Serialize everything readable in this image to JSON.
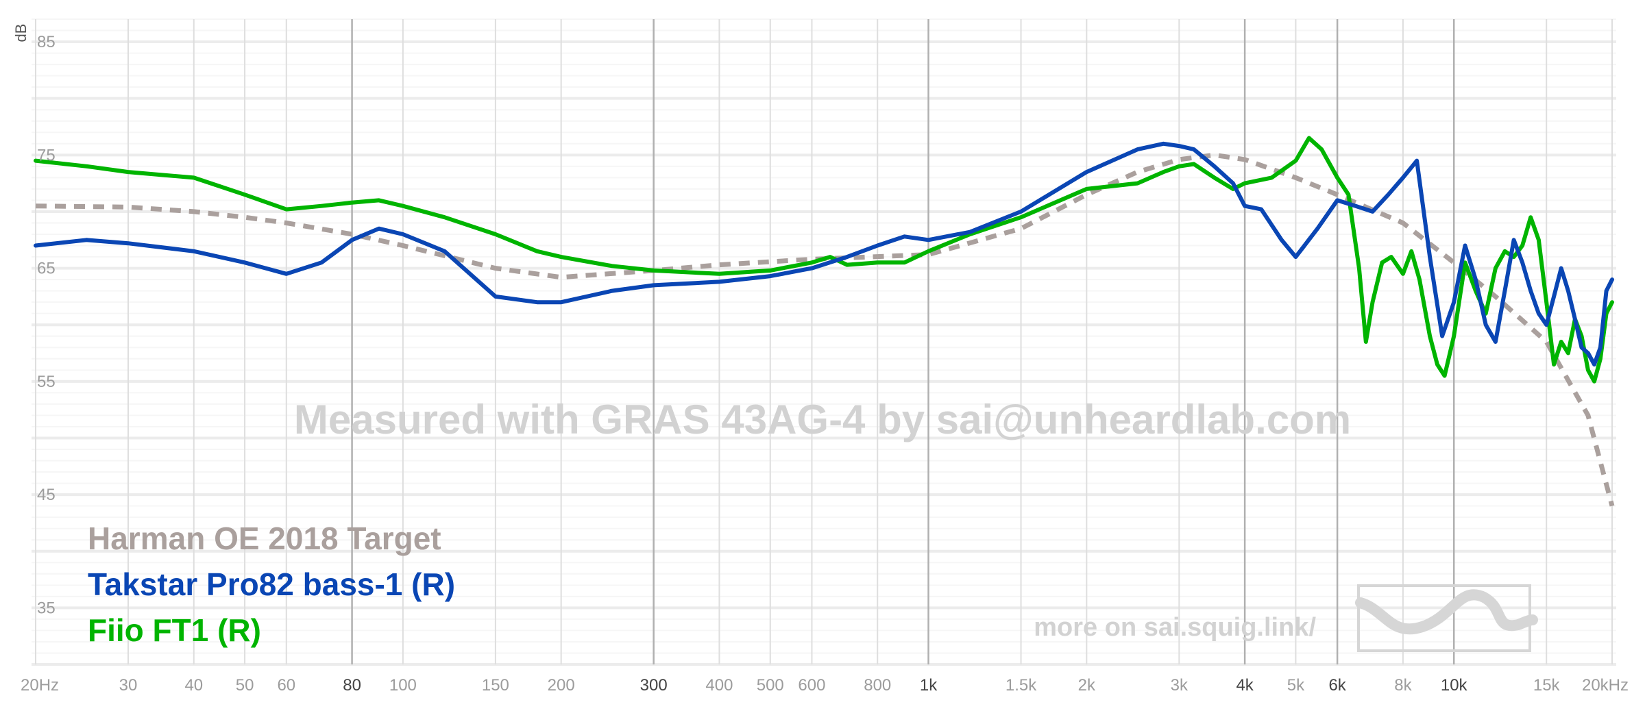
{
  "chart_data": {
    "type": "line",
    "xscale": "log",
    "xlim": [
      20,
      20000
    ],
    "ylim": [
      30,
      87
    ],
    "ylabel": "dB",
    "yticks": [
      85,
      75,
      65,
      55,
      45,
      35
    ],
    "xticks": [
      {
        "value": 20,
        "label": "20Hz"
      },
      {
        "value": 30,
        "label": "30"
      },
      {
        "value": 40,
        "label": "40"
      },
      {
        "value": 50,
        "label": "50"
      },
      {
        "value": 60,
        "label": "60"
      },
      {
        "value": 80,
        "label": "80"
      },
      {
        "value": 100,
        "label": "100"
      },
      {
        "value": 150,
        "label": "150"
      },
      {
        "value": 200,
        "label": "200"
      },
      {
        "value": 300,
        "label": "300"
      },
      {
        "value": 400,
        "label": "400"
      },
      {
        "value": 500,
        "label": "500"
      },
      {
        "value": 600,
        "label": "600"
      },
      {
        "value": 800,
        "label": "800"
      },
      {
        "value": 1000,
        "label": "1k"
      },
      {
        "value": 1500,
        "label": "1.5k"
      },
      {
        "value": 2000,
        "label": "2k"
      },
      {
        "value": 3000,
        "label": "3k"
      },
      {
        "value": 4000,
        "label": "4k"
      },
      {
        "value": 5000,
        "label": "5k"
      },
      {
        "value": 6000,
        "label": "6k"
      },
      {
        "value": 8000,
        "label": "8k"
      },
      {
        "value": 10000,
        "label": "10k"
      },
      {
        "value": 15000,
        "label": "15k"
      },
      {
        "value": 20000,
        "label": "20kHz"
      }
    ],
    "major_xticks": [
      80,
      300,
      1000,
      4000,
      6000,
      10000
    ],
    "grid": true,
    "legend_position": "bottom-left",
    "watermark": "Measured with GRAS 43AG-4 by sai@unheardlab.com",
    "link_text": "more on sai.squig.link/",
    "series": [
      {
        "name": "Harman OE 2018 Target",
        "color": "#aaa09d",
        "dashed": true,
        "x": [
          20,
          30,
          40,
          50,
          60,
          80,
          100,
          150,
          200,
          300,
          400,
          600,
          1000,
          1500,
          2000,
          2500,
          3000,
          3500,
          4000,
          5000,
          6000,
          8000,
          10000,
          12000,
          15000,
          18000,
          20000
        ],
        "y": [
          70.5,
          70.4,
          70.0,
          69.5,
          69.0,
          68.0,
          67.0,
          65.0,
          64.2,
          64.8,
          65.3,
          65.8,
          66.2,
          68.5,
          71.5,
          73.5,
          74.6,
          75.0,
          74.6,
          73.0,
          71.5,
          69.0,
          65.5,
          62.5,
          58.5,
          52.0,
          44.0
        ]
      },
      {
        "name": "Takstar Pro82 bass-1 (R)",
        "color": "#0a46b4",
        "dashed": false,
        "x": [
          20,
          25,
          30,
          40,
          50,
          60,
          70,
          80,
          90,
          100,
          120,
          150,
          180,
          200,
          250,
          300,
          400,
          500,
          600,
          700,
          800,
          900,
          1000,
          1200,
          1500,
          2000,
          2500,
          2800,
          3000,
          3200,
          3500,
          3800,
          4000,
          4300,
          4700,
          5000,
          5500,
          6000,
          6500,
          7000,
          7500,
          8000,
          8500,
          9000,
          9500,
          10000,
          10500,
          11000,
          11500,
          12000,
          12500,
          13000,
          13500,
          14000,
          14500,
          15000,
          15500,
          16000,
          16500,
          17000,
          17500,
          18000,
          18500,
          19000,
          19500,
          20000
        ],
        "y": [
          67.0,
          67.5,
          67.2,
          66.5,
          65.5,
          64.5,
          65.5,
          67.5,
          68.5,
          68.0,
          66.5,
          62.5,
          62.0,
          62.0,
          63.0,
          63.5,
          63.8,
          64.3,
          65.0,
          66.0,
          67.0,
          67.8,
          67.5,
          68.2,
          70.0,
          73.5,
          75.5,
          76.0,
          75.8,
          75.5,
          74.0,
          72.5,
          70.5,
          70.2,
          67.5,
          66.0,
          68.5,
          71.0,
          70.5,
          70.0,
          71.5,
          73.0,
          74.5,
          66.0,
          59.0,
          62.0,
          67.0,
          64.0,
          60.0,
          58.5,
          63.0,
          67.5,
          65.5,
          63.0,
          61.0,
          60.0,
          62.5,
          65.0,
          63.0,
          60.5,
          58.0,
          57.5,
          56.5,
          58.0,
          63.0,
          64.0
        ]
      },
      {
        "name": "Fiio FT1 (R)",
        "color": "#00b400",
        "dashed": false,
        "x": [
          20,
          25,
          30,
          40,
          50,
          60,
          70,
          80,
          90,
          100,
          120,
          150,
          180,
          200,
          250,
          300,
          400,
          500,
          600,
          650,
          700,
          800,
          900,
          1000,
          1200,
          1500,
          2000,
          2500,
          2800,
          3000,
          3200,
          3500,
          3800,
          4000,
          4500,
          5000,
          5300,
          5600,
          6000,
          6300,
          6600,
          6800,
          7000,
          7300,
          7600,
          8000,
          8300,
          8600,
          9000,
          9300,
          9600,
          10000,
          10500,
          11000,
          11500,
          12000,
          12500,
          13000,
          13500,
          14000,
          14500,
          15000,
          15500,
          16000,
          16500,
          17000,
          17500,
          18000,
          18500,
          19000,
          19500,
          20000
        ],
        "y": [
          74.5,
          74.0,
          73.5,
          73.0,
          71.5,
          70.2,
          70.5,
          70.8,
          71.0,
          70.5,
          69.5,
          68.0,
          66.5,
          66.0,
          65.2,
          64.8,
          64.5,
          64.8,
          65.5,
          66.0,
          65.3,
          65.5,
          65.5,
          66.5,
          68.0,
          69.5,
          72.0,
          72.5,
          73.5,
          74.0,
          74.2,
          73.0,
          72.0,
          72.5,
          73.0,
          74.5,
          76.5,
          75.5,
          73.0,
          71.5,
          65.0,
          58.5,
          62.0,
          65.5,
          66.0,
          64.5,
          66.5,
          64.0,
          59.0,
          56.5,
          55.5,
          59.0,
          65.5,
          63.0,
          61.0,
          65.0,
          66.5,
          66.0,
          67.0,
          69.5,
          67.5,
          62.0,
          56.5,
          58.5,
          57.5,
          60.5,
          59.0,
          56.0,
          55.0,
          57.0,
          61.0,
          62.0
        ]
      }
    ]
  }
}
